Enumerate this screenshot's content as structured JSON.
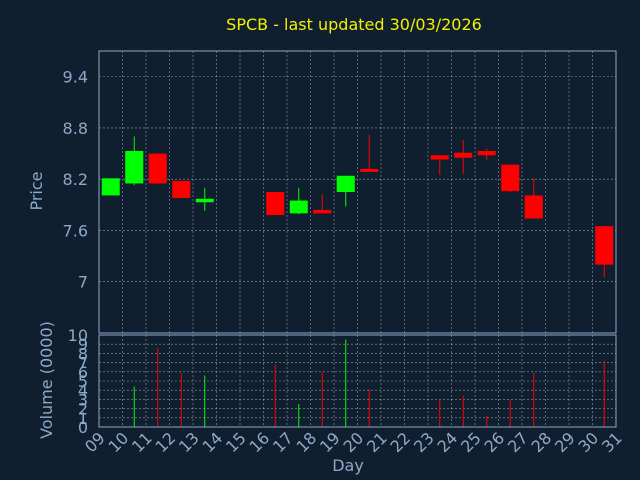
{
  "title": "SPCB - last updated 30/03/2026",
  "colors": {
    "background": "#0f1f30",
    "plot_border": "#8ea9c7",
    "grid": "#ffffff",
    "text": "#8ea9c7",
    "title": "#f2f200",
    "up": "#00ff00",
    "down": "#ff0000"
  },
  "chart_data": {
    "type": "candlestick",
    "price_panel": {
      "ylabel": "Price",
      "ylim": [
        6.4,
        9.7
      ],
      "yticks": [
        7,
        7.6,
        8.2,
        8.8,
        9.4
      ],
      "ytick_labels": [
        "7",
        "7.6",
        "8.2",
        "8.8",
        "9.4"
      ],
      "grid": true
    },
    "volume_panel": {
      "ylabel": "Volume (0000)",
      "ylim": [
        0,
        10
      ],
      "yticks": [
        0,
        1,
        2,
        3,
        4,
        5,
        6,
        7,
        8,
        9,
        10
      ],
      "ytick_labels": [
        "0",
        "1",
        "2",
        "3",
        "4",
        "5",
        "6",
        "7",
        "8",
        "9",
        "10"
      ],
      "grid": true
    },
    "xlabel": "Day",
    "x_ticks": [
      "09",
      "10",
      "11",
      "12",
      "13",
      "14",
      "15",
      "16",
      "17",
      "18",
      "19",
      "20",
      "21",
      "22",
      "23",
      "24",
      "25",
      "26",
      "27",
      "28",
      "29",
      "30",
      "31"
    ],
    "candles": [
      {
        "day": "09",
        "open": 8.01,
        "close": 8.21,
        "high": 8.21,
        "low": 8.01,
        "volume": 0
      },
      {
        "day": "10",
        "open": 8.15,
        "close": 8.53,
        "high": 8.7,
        "low": 8.13,
        "volume": 4.4
      },
      {
        "day": "11",
        "open": 8.5,
        "close": 8.15,
        "high": 8.5,
        "low": 8.14,
        "volume": 8.6
      },
      {
        "day": "12",
        "open": 8.18,
        "close": 7.98,
        "high": 8.18,
        "low": 7.98,
        "volume": 5.9
      },
      {
        "day": "13",
        "open": 7.93,
        "close": 7.97,
        "high": 8.1,
        "low": 7.83,
        "volume": 5.6
      },
      {
        "day": "16",
        "open": 8.05,
        "close": 7.78,
        "high": 8.05,
        "low": 7.78,
        "volume": 6.8
      },
      {
        "day": "17",
        "open": 7.8,
        "close": 7.95,
        "high": 8.1,
        "low": 7.79,
        "volume": 2.5
      },
      {
        "day": "18",
        "open": 7.84,
        "close": 7.8,
        "high": 8.02,
        "low": 7.8,
        "volume": 6.0
      },
      {
        "day": "19",
        "open": 8.05,
        "close": 8.24,
        "high": 8.24,
        "low": 7.88,
        "volume": 9.5
      },
      {
        "day": "20",
        "open": 8.32,
        "close": 8.29,
        "high": 8.72,
        "low": 8.29,
        "volume": 4.1
      },
      {
        "day": "23",
        "open": 8.48,
        "close": 8.43,
        "high": 8.48,
        "low": 8.25,
        "volume": 3.0
      },
      {
        "day": "24",
        "open": 8.51,
        "close": 8.45,
        "high": 8.66,
        "low": 8.26,
        "volume": 3.4
      },
      {
        "day": "25",
        "open": 8.53,
        "close": 8.48,
        "high": 8.56,
        "low": 8.42,
        "volume": 1.2
      },
      {
        "day": "26",
        "open": 8.37,
        "close": 8.06,
        "high": 8.37,
        "low": 8.05,
        "volume": 3.0
      },
      {
        "day": "27",
        "open": 8.01,
        "close": 7.74,
        "high": 8.21,
        "low": 7.74,
        "volume": 5.9
      },
      {
        "day": "30",
        "open": 7.65,
        "close": 7.2,
        "high": 7.65,
        "low": 7.05,
        "volume": 7.2
      }
    ]
  }
}
